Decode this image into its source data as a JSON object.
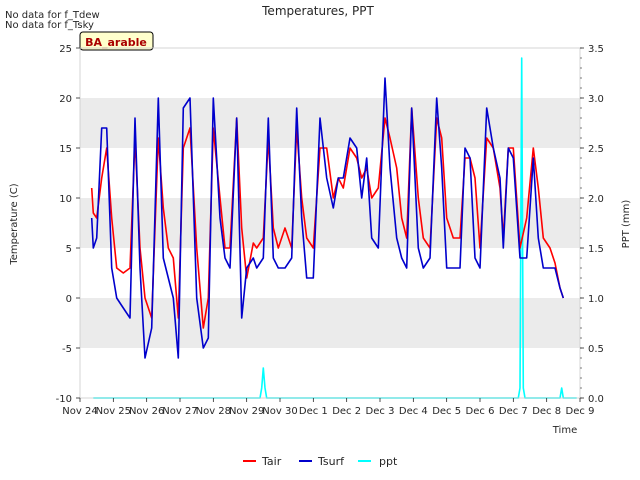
{
  "notes": [
    "No data for f_Tdew",
    "No data for f_Tsky"
  ],
  "site_label": "BA_arable",
  "colors": {
    "tair": "#ff0000",
    "tsurf": "#0000cc",
    "ppt": "#00ffff",
    "band": "#ebebeb"
  },
  "chart_data": {
    "type": "line",
    "title": "Temperatures, PPT",
    "xlabel": "Time",
    "ylabel": "Temperature (C)",
    "y2label": "PPT (mm)",
    "ylim": [
      -10,
      25
    ],
    "y2lim": [
      0.0,
      3.5
    ],
    "xlim": [
      "Nov 24",
      "Dec 9"
    ],
    "x_ticks": [
      "Nov 24",
      "Nov 25",
      "Nov 26",
      "Nov 27",
      "Nov 28",
      "Nov 29",
      "Nov 30",
      "Dec 1",
      "Dec 2",
      "Dec 3",
      "Dec 4",
      "Dec 5",
      "Dec 6",
      "Dec 7",
      "Dec 8",
      "Dec 9"
    ],
    "y_ticks": [
      "25",
      "20",
      "15",
      "10",
      "5",
      "0",
      "-5",
      "-10"
    ],
    "y2_ticks": [
      "3.5",
      "3.0",
      "2.5",
      "2.0",
      "1.5",
      "1.0",
      "0.5",
      "0.0"
    ],
    "grid": "horizontal bands",
    "legend_position": "bottom",
    "series": [
      {
        "name": "Tair",
        "x_days": [
          0.35,
          0.4,
          0.5,
          0.65,
          0.8,
          0.95,
          1.1,
          1.3,
          1.5,
          1.65,
          1.8,
          1.95,
          2.15,
          2.35,
          2.5,
          2.65,
          2.8,
          2.95,
          3.1,
          3.3,
          3.5,
          3.7,
          3.85,
          4.0,
          4.2,
          4.35,
          4.5,
          4.7,
          4.85,
          5.0,
          5.2,
          5.3,
          5.5,
          5.65,
          5.8,
          5.95,
          6.15,
          6.35,
          6.5,
          6.65,
          6.8,
          7.0,
          7.2,
          7.4,
          7.6,
          7.75,
          7.9,
          8.1,
          8.3,
          8.45,
          8.6,
          8.75,
          8.95,
          9.15,
          9.3,
          9.5,
          9.65,
          9.8,
          9.95,
          10.15,
          10.3,
          10.5,
          10.7,
          10.85,
          11.0,
          11.2,
          11.4,
          11.55,
          11.7,
          11.85,
          12.0,
          12.2,
          12.4,
          12.6,
          12.7,
          12.85,
          13.0,
          13.2,
          13.4,
          13.6,
          13.75,
          13.9,
          14.1,
          14.25,
          14.4,
          14.5
        ],
        "values": [
          11,
          8.5,
          8,
          12,
          15,
          8,
          3,
          2.5,
          3,
          16,
          5,
          0,
          -2,
          16,
          9,
          5,
          4,
          -2,
          15,
          17,
          5,
          -3,
          0,
          17,
          10,
          5,
          5,
          18,
          7,
          2,
          5.5,
          5,
          6,
          16,
          7,
          5,
          7,
          5,
          17,
          10,
          6,
          5,
          15,
          15,
          10,
          12,
          11,
          15,
          14,
          12,
          13,
          10,
          11,
          18,
          16,
          13,
          8,
          6,
          19,
          10,
          6,
          5,
          18,
          16,
          8,
          6,
          6,
          14,
          14,
          12,
          5,
          16,
          15,
          11,
          6,
          15,
          15,
          5,
          8,
          15,
          11,
          6,
          5,
          3.5,
          1,
          0
        ]
      },
      {
        "name": "Tsurf",
        "x_days": [
          0.35,
          0.4,
          0.5,
          0.65,
          0.8,
          0.95,
          1.1,
          1.3,
          1.5,
          1.65,
          1.8,
          1.95,
          2.15,
          2.35,
          2.5,
          2.65,
          2.8,
          2.95,
          3.1,
          3.3,
          3.5,
          3.7,
          3.85,
          4.0,
          4.2,
          4.35,
          4.5,
          4.7,
          4.85,
          5.0,
          5.2,
          5.3,
          5.5,
          5.65,
          5.8,
          5.95,
          6.15,
          6.35,
          6.5,
          6.65,
          6.8,
          7.0,
          7.2,
          7.4,
          7.6,
          7.75,
          7.9,
          8.1,
          8.3,
          8.45,
          8.6,
          8.75,
          8.95,
          9.15,
          9.3,
          9.5,
          9.65,
          9.8,
          9.95,
          10.15,
          10.3,
          10.5,
          10.7,
          10.85,
          11.0,
          11.2,
          11.4,
          11.55,
          11.7,
          11.85,
          12.0,
          12.2,
          12.4,
          12.6,
          12.7,
          12.85,
          13.0,
          13.2,
          13.4,
          13.6,
          13.75,
          13.9,
          14.1,
          14.25,
          14.4,
          14.5
        ],
        "values": [
          8,
          5,
          6,
          17,
          17,
          3,
          0,
          -1,
          -2,
          18,
          3,
          -6,
          -3,
          20,
          4,
          2,
          0,
          -6,
          19,
          20,
          0,
          -5,
          -4,
          20,
          8,
          4,
          3,
          18,
          -2,
          3,
          4,
          3,
          4,
          18,
          4,
          3,
          3,
          4,
          19,
          8,
          2,
          2,
          18,
          12,
          9,
          12,
          12,
          16,
          15,
          10,
          14,
          6,
          5,
          22,
          13,
          6,
          4,
          3,
          19,
          5,
          3,
          4,
          20,
          13,
          3,
          3,
          3,
          15,
          14,
          4,
          3,
          19,
          15,
          12,
          5,
          15,
          14,
          4,
          4,
          14,
          6,
          3,
          3,
          3,
          1,
          0
        ]
      },
      {
        "name": "ppt",
        "axis": "right",
        "x_days": [
          0.4,
          5.4,
          5.45,
          5.5,
          5.55,
          5.6,
          13.15,
          13.2,
          13.25,
          13.3,
          13.35,
          14.4,
          14.45,
          14.5,
          14.9
        ],
        "values": [
          0,
          0,
          0.1,
          0.3,
          0.1,
          0,
          0,
          0.1,
          3.4,
          0.1,
          0,
          0,
          0.1,
          0,
          0
        ]
      }
    ]
  }
}
